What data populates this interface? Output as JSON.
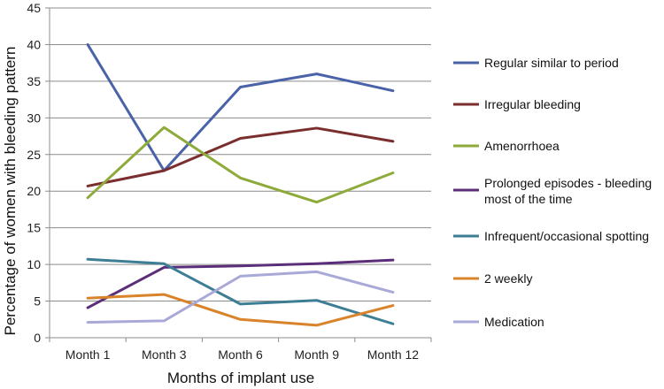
{
  "chart_data": {
    "type": "line",
    "title": "",
    "xlabel": "Months of implant use",
    "ylabel": "Percentage of women with bleeding pattern",
    "categories": [
      "Month 1",
      "Month 3",
      "Month 6",
      "Month 9",
      "Month 12"
    ],
    "ylim": [
      0,
      45
    ],
    "yticks": [
      0,
      5,
      10,
      15,
      20,
      25,
      30,
      35,
      40,
      45
    ],
    "grid": "horizontal",
    "legend_position": "right",
    "series": [
      {
        "name": "Regular similar to period",
        "color": "#4A63A8",
        "values": [
          40,
          22.8,
          34.2,
          36,
          33.7
        ]
      },
      {
        "name": "Irregular bleeding",
        "color": "#7A2E2E",
        "values": [
          20.7,
          22.8,
          27.2,
          28.6,
          26.8
        ]
      },
      {
        "name": "Amenorrhoea",
        "color": "#8EAA3A",
        "values": [
          19.1,
          28.7,
          21.8,
          18.5,
          22.5
        ]
      },
      {
        "name": "Prolonged episodes - bleeding most of the time",
        "color": "#5C2E7A",
        "values": [
          4.1,
          9.6,
          9.8,
          10.1,
          10.6
        ]
      },
      {
        "name": "Infrequent/occasional spotting",
        "color": "#3E7E95",
        "values": [
          10.7,
          10.1,
          4.6,
          5.1,
          1.9
        ]
      },
      {
        "name": "2 weekly",
        "color": "#D9832B",
        "values": [
          5.4,
          5.9,
          2.5,
          1.7,
          4.4
        ]
      },
      {
        "name": "Medication",
        "color": "#A9A9D8",
        "values": [
          2.1,
          2.3,
          8.4,
          9.0,
          6.2
        ]
      }
    ]
  }
}
